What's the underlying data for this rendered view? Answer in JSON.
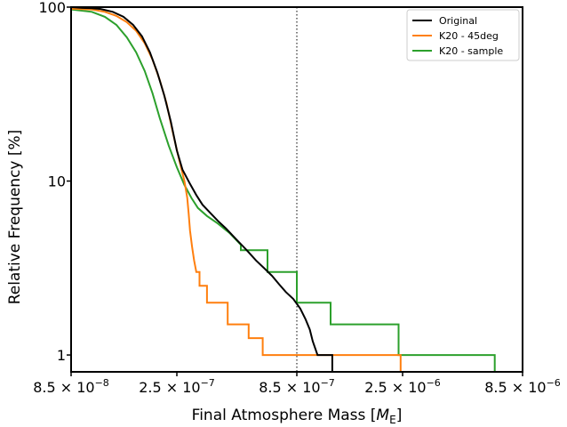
{
  "chart_data": {
    "type": "line",
    "title": "",
    "xlabel": "Final Atmosphere Mass [",
    "xlabel_sym": "M",
    "xlabel_sub": "E",
    "xlabel_close": "]",
    "ylabel": "Relative Frequency [%]",
    "x_scale": "log",
    "y_scale": "log",
    "xlim": [
      8.5e-08,
      8.5e-06
    ],
    "ylim": [
      0.8,
      100
    ],
    "x_ticks": [
      {
        "value": 8.5e-08,
        "mant": "8.5",
        "exp": "-8"
      },
      {
        "value": 2.5e-07,
        "mant": "2.5",
        "exp": "-7"
      },
      {
        "value": 8.5e-07,
        "mant": "8.5",
        "exp": "-7"
      },
      {
        "value": 2.5e-06,
        "mant": "2.5",
        "exp": "-6"
      },
      {
        "value": 8.5e-06,
        "mant": "8.5",
        "exp": "-6"
      }
    ],
    "y_ticks": [
      {
        "value": 100,
        "label": "100"
      },
      {
        "value": 10,
        "label": "10"
      },
      {
        "value": 1,
        "label": "1"
      }
    ],
    "reference_line": {
      "x": 8.5e-07,
      "style": "dotted"
    },
    "legend_position": "top-right",
    "grid": false,
    "series": [
      {
        "name": "Original",
        "color": "#000000",
        "points": [
          [
            8.5e-08,
            100
          ],
          [
            9.5e-08,
            99
          ],
          [
            1.05e-07,
            98.5
          ],
          [
            1.15e-07,
            97.5
          ],
          [
            1.3e-07,
            94
          ],
          [
            1.45e-07,
            88
          ],
          [
            1.6e-07,
            79
          ],
          [
            1.75e-07,
            68
          ],
          [
            1.9e-07,
            55
          ],
          [
            2.05e-07,
            42
          ],
          [
            2.2e-07,
            31
          ],
          [
            2.35e-07,
            22
          ],
          [
            2.5e-07,
            15
          ],
          [
            2.65e-07,
            11.6
          ],
          [
            2.85e-07,
            9.7
          ],
          [
            3.05e-07,
            8.3
          ],
          [
            3.25e-07,
            7.3
          ],
          [
            3.5e-07,
            6.6
          ],
          [
            3.8e-07,
            5.9
          ],
          [
            4.15e-07,
            5.3
          ],
          [
            4.6e-07,
            4.6
          ],
          [
            5.1e-07,
            4.0
          ],
          [
            5.6e-07,
            3.5
          ],
          [
            6.1e-07,
            3.15
          ],
          [
            6.6e-07,
            2.85
          ],
          [
            7.1e-07,
            2.55
          ],
          [
            7.6e-07,
            2.3
          ],
          [
            8.2e-07,
            2.1
          ],
          [
            8.8e-07,
            1.85
          ],
          [
            9.3e-07,
            1.6
          ],
          [
            9.7e-07,
            1.4
          ],
          [
            1e-06,
            1.2
          ],
          [
            1.05e-06,
            1.0
          ],
          [
            1.12e-06,
            1.0
          ],
          [
            1.22e-06,
            1.0
          ],
          [
            1.22e-06,
            0.8
          ]
        ]
      },
      {
        "name": "K20 - 45deg",
        "color": "#ff7f0e",
        "points": [
          [
            8.5e-08,
            98
          ],
          [
            1.05e-07,
            97
          ],
          [
            1.2e-07,
            94
          ],
          [
            1.35e-07,
            89
          ],
          [
            1.5e-07,
            82
          ],
          [
            1.65e-07,
            73
          ],
          [
            1.8e-07,
            62
          ],
          [
            1.95e-07,
            50
          ],
          [
            2.1e-07,
            38
          ],
          [
            2.25e-07,
            28
          ],
          [
            2.4e-07,
            19
          ],
          [
            2.55e-07,
            13.5
          ],
          [
            2.7e-07,
            10.0
          ],
          [
            2.78e-07,
            8.0
          ],
          [
            2.82e-07,
            6.5
          ],
          [
            2.86e-07,
            5.2
          ],
          [
            2.92e-07,
            4.2
          ],
          [
            2.98e-07,
            3.5
          ],
          [
            3.05e-07,
            3.0
          ],
          [
            3.15e-07,
            3.0
          ],
          [
            3.15e-07,
            2.5
          ],
          [
            3.4e-07,
            2.5
          ],
          [
            3.4e-07,
            2.0
          ],
          [
            4.2e-07,
            2.0
          ],
          [
            4.2e-07,
            1.5
          ],
          [
            5.2e-07,
            1.5
          ],
          [
            5.2e-07,
            1.25
          ],
          [
            6e-07,
            1.25
          ],
          [
            6e-07,
            1.0
          ],
          [
            2.45e-06,
            1.0
          ],
          [
            2.45e-06,
            0.8
          ]
        ]
      },
      {
        "name": "K20 - sample",
        "color": "#2ca02c",
        "points": [
          [
            8.5e-08,
            97
          ],
          [
            1.05e-07,
            94
          ],
          [
            1.2e-07,
            88
          ],
          [
            1.35e-07,
            79
          ],
          [
            1.5e-07,
            67
          ],
          [
            1.65e-07,
            55
          ],
          [
            1.8e-07,
            43
          ],
          [
            1.95e-07,
            32
          ],
          [
            2.1e-07,
            23
          ],
          [
            2.3e-07,
            16
          ],
          [
            2.5e-07,
            12
          ],
          [
            2.7e-07,
            9.5
          ],
          [
            2.9e-07,
            8.0
          ],
          [
            3.1e-07,
            7.0
          ],
          [
            3.4e-07,
            6.3
          ],
          [
            3.8e-07,
            5.7
          ],
          [
            4.3e-07,
            5.0
          ],
          [
            4.8e-07,
            4.3
          ],
          [
            4.8e-07,
            4.0
          ],
          [
            6.3e-07,
            4.0
          ],
          [
            6.3e-07,
            3.0
          ],
          [
            8.5e-07,
            3.0
          ],
          [
            8.5e-07,
            2.0
          ],
          [
            1.2e-06,
            2.0
          ],
          [
            1.2e-06,
            1.5
          ],
          [
            2.4e-06,
            1.5
          ],
          [
            2.4e-06,
            1.0
          ],
          [
            6.4e-06,
            1.0
          ],
          [
            6.4e-06,
            0.8
          ]
        ]
      }
    ]
  }
}
